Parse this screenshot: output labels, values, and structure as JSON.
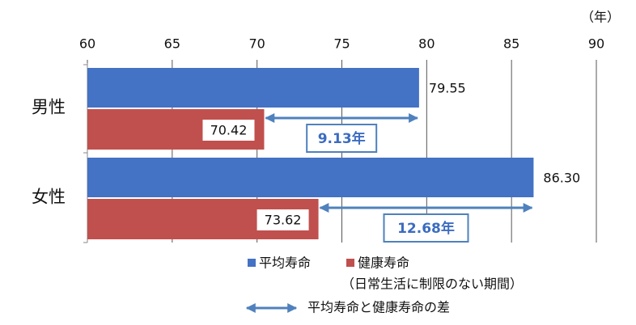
{
  "chart_data": {
    "type": "bar",
    "orientation": "horizontal",
    "x_unit": "（年）",
    "categories": [
      "男性",
      "女性"
    ],
    "series": [
      {
        "name": "平均寿命",
        "color": "#4472c4",
        "values": [
          79.55,
          86.3
        ],
        "value_labels": [
          "79.55",
          "86.30"
        ]
      },
      {
        "name": "健康寿命",
        "color": "#c0504d",
        "values": [
          70.42,
          73.62
        ],
        "value_labels": [
          "70.42",
          "73.62"
        ]
      }
    ],
    "xlim": [
      60,
      90
    ],
    "xticks": [
      60,
      65,
      70,
      75,
      80,
      85,
      90
    ],
    "grid": true,
    "legend_note": "（日常生活に制限のない期間）",
    "difference_labels": [
      "9.13年",
      "12.68年"
    ],
    "difference_legend": "平均寿命と健康寿命の差",
    "arrow_color": "#4f81bd"
  }
}
